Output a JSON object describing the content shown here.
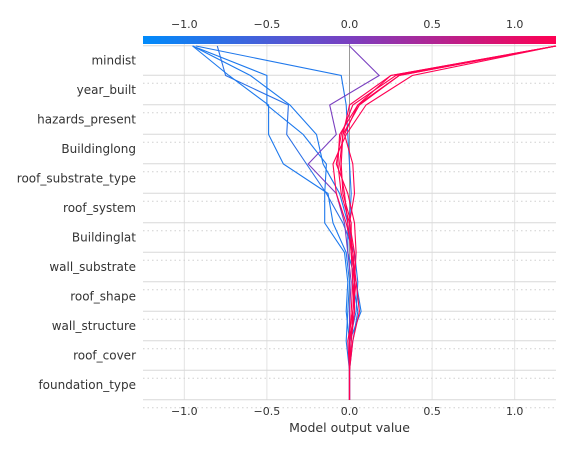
{
  "chart_data": {
    "type": "line",
    "subtype": "shap-decision-plot",
    "xlabel": "Model output value",
    "xlim": [
      -1.25,
      1.25
    ],
    "x_ticks": [
      -1.0,
      -0.5,
      0.0,
      0.5,
      1.0
    ],
    "x_tick_labels": [
      "−1.0",
      "−0.5",
      "0.0",
      "0.5",
      "1.0"
    ],
    "base_value": 0.0,
    "features": [
      "mindist",
      "year_built",
      "hazards_present",
      "Buildinglong",
      "roof_substrate_type",
      "roof_system",
      "Buildinglat",
      "wall_substrate",
      "roof_shape",
      "wall_structure",
      "roof_cover",
      "foundation_type"
    ],
    "colorbar": {
      "low_color": "#008bfb",
      "mid_color": "#7a3fc0",
      "high_color": "#ff0052",
      "range": [
        -1.25,
        1.25
      ]
    },
    "grid": true,
    "series": [
      {
        "values": [
          0.0,
          0.0,
          0.02,
          0.05,
          0.02,
          0.01,
          0.0,
          0.01,
          0.0,
          -0.01,
          -0.02,
          -0.05,
          -0.93
        ]
      },
      {
        "values": [
          0.0,
          0.0,
          0.0,
          0.07,
          0.04,
          -0.01,
          -0.01,
          -0.06,
          -0.16,
          -0.2,
          -0.36,
          -0.6,
          -0.95
        ]
      },
      {
        "values": [
          0.0,
          0.0,
          0.0,
          0.04,
          0.05,
          0.03,
          -0.04,
          -0.14,
          -0.26,
          -0.38,
          -0.37,
          -0.75,
          -0.8
        ]
      },
      {
        "values": [
          0.0,
          0.0,
          -0.02,
          -0.01,
          0.0,
          -0.02,
          -0.1,
          -0.13,
          -0.4,
          -0.49,
          -0.49,
          -0.73,
          -0.95
        ]
      },
      {
        "values": [
          0.0,
          0.0,
          0.0,
          -0.02,
          -0.01,
          -0.03,
          -0.15,
          -0.15,
          -0.14,
          -0.28,
          -0.5,
          -0.5,
          -0.95
        ]
      },
      {
        "values": [
          0.0,
          0.0,
          0.0,
          0.0,
          0.01,
          -0.01,
          -0.03,
          -0.08,
          -0.25,
          -0.08,
          -0.12,
          0.18,
          0.0
        ]
      },
      {
        "values": [
          0.0,
          0.0,
          0.02,
          0.06,
          0.04,
          0.02,
          -0.02,
          -0.08,
          -0.1,
          -0.02,
          0.1,
          0.38,
          1.25
        ]
      },
      {
        "values": [
          0.0,
          0.0,
          -0.01,
          0.02,
          0.04,
          0.01,
          0.01,
          -0.04,
          -0.05,
          -0.04,
          0.06,
          0.3,
          1.25
        ]
      },
      {
        "values": [
          0.0,
          0.0,
          0.01,
          0.03,
          0.03,
          0.04,
          0.03,
          -0.01,
          -0.08,
          -0.05,
          0.02,
          0.28,
          1.25
        ]
      },
      {
        "values": [
          0.0,
          0.0,
          0.0,
          0.01,
          0.02,
          0.01,
          -0.01,
          -0.03,
          -0.06,
          -0.04,
          0.0,
          0.25,
          1.25
        ]
      },
      {
        "values": [
          0.0,
          0.0,
          0.01,
          0.02,
          0.03,
          0.02,
          0.0,
          -0.05,
          -0.07,
          -0.06,
          0.05,
          0.3,
          1.25
        ]
      },
      {
        "values": [
          0.0,
          0.0,
          0.0,
          0.03,
          0.02,
          0.03,
          0.0,
          0.03,
          0.02,
          -0.03,
          0.05,
          0.25,
          1.25
        ]
      }
    ]
  }
}
